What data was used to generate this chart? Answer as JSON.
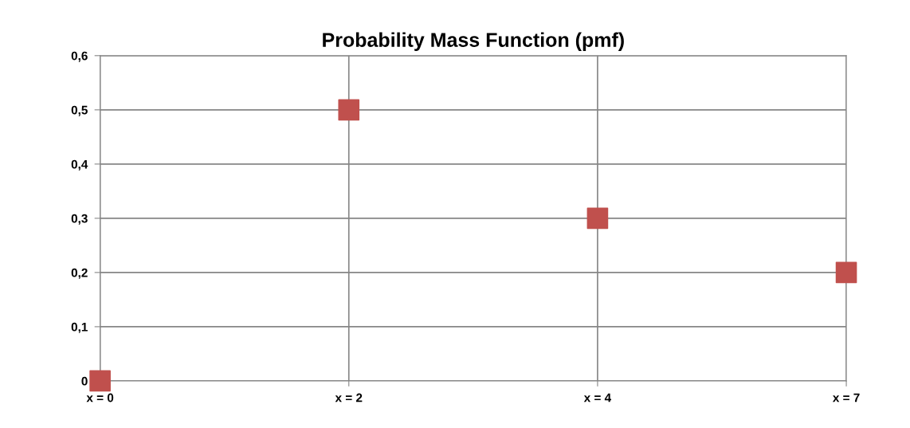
{
  "chart_data": {
    "type": "scatter",
    "title": "Probability Mass Function (pmf)",
    "categories": [
      "x = 0",
      "x = 2",
      "x = 4",
      "x = 7"
    ],
    "series": [
      {
        "color": "#c0504d",
        "values": [
          0,
          0.5,
          0.3,
          0.2
        ]
      }
    ],
    "ylim": [
      0,
      0.6
    ],
    "yticks": [
      0,
      {
        "value": 0.1,
        "label": "0,1"
      },
      {
        "value": 0.2,
        "label": "0,2"
      },
      {
        "value": 0.3,
        "label": "0,3"
      },
      {
        "value": 0.4,
        "label": "0,4"
      },
      {
        "value": 0.5,
        "label": "0,5"
      },
      {
        "value": 0.6,
        "label": "0,6"
      }
    ],
    "grid": true,
    "marker": "square"
  }
}
